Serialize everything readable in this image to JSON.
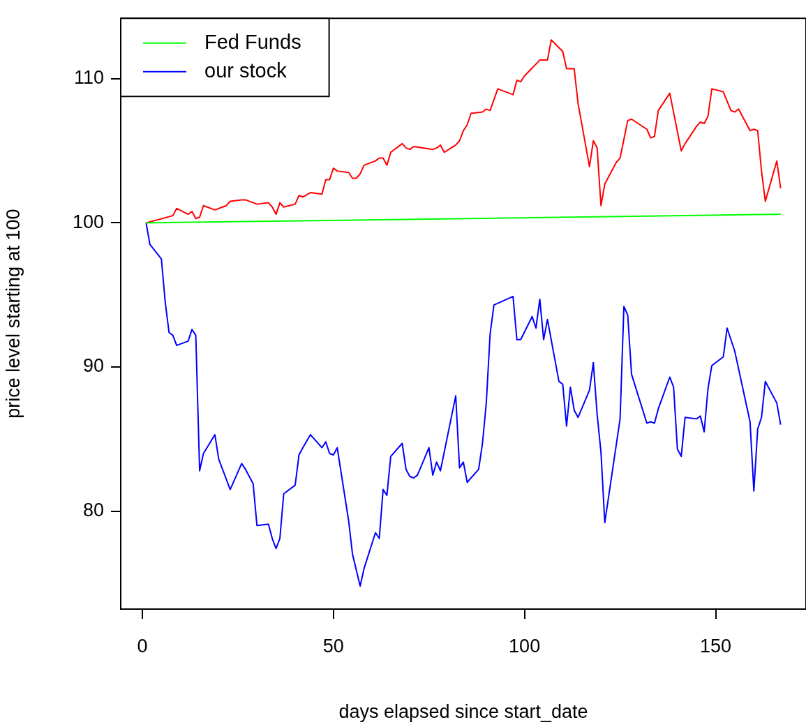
{
  "chart_data": {
    "type": "line",
    "xlabel": "days elapsed since start_date",
    "ylabel": "price level starting at 100",
    "xlim": [
      -5.64,
      173.64
    ],
    "ylim": [
      73.2,
      114.2
    ],
    "xticks": [
      0,
      50,
      100,
      150
    ],
    "yticks": [
      80,
      90,
      100,
      110
    ],
    "legend": "top left",
    "marker": "none",
    "line_style": "solid",
    "series": [
      {
        "name": "Fed Funds",
        "color": "#00ff00",
        "x": [
          1,
          167
        ],
        "values": [
          100,
          100.6
        ]
      },
      {
        "color": "#ff0000",
        "x": [
          1,
          8,
          9,
          12,
          13,
          14,
          15,
          16,
          19,
          21,
          22,
          23,
          26,
          27,
          30,
          33,
          34,
          35,
          36,
          37,
          40,
          41,
          42,
          44,
          47,
          48,
          49,
          50,
          51,
          54,
          55,
          56,
          57,
          58,
          61,
          62,
          63,
          64,
          65,
          68,
          69,
          70,
          71,
          76,
          77,
          78,
          79,
          82,
          83,
          84,
          85,
          86,
          89,
          90,
          91,
          93,
          97,
          98,
          99,
          100,
          104,
          105,
          106,
          107,
          110,
          111,
          112,
          113,
          114,
          117,
          118,
          119,
          120,
          121,
          124,
          125,
          127,
          128,
          132,
          133,
          134,
          135,
          138,
          141,
          142,
          145,
          146,
          147,
          148,
          149,
          152,
          154,
          155,
          156,
          159,
          160,
          161,
          162,
          163,
          166,
          167
        ],
        "values": [
          100,
          100.5,
          101,
          100.6,
          100.8,
          100.3,
          100.4,
          101.2,
          100.9,
          101.1,
          101.2,
          101.5,
          101.6,
          101.6,
          101.3,
          101.4,
          101.1,
          100.6,
          101.4,
          101.1,
          101.3,
          101.9,
          101.8,
          102.1,
          102,
          103,
          103,
          103.8,
          103.6,
          103.5,
          103.1,
          103.1,
          103.4,
          104,
          104.3,
          104.5,
          104.5,
          104,
          104.9,
          105.5,
          105.2,
          105.1,
          105.3,
          105.1,
          105.2,
          105.4,
          104.9,
          105.4,
          105.7,
          106.4,
          106.8,
          107.6,
          107.7,
          107.9,
          107.8,
          109.3,
          108.9,
          109.9,
          109.8,
          110.2,
          111.3,
          111.3,
          111.3,
          112.7,
          111.9,
          110.7,
          110.7,
          110.7,
          108.3,
          103.9,
          105.7,
          105.2,
          101.2,
          102.7,
          104.2,
          104.5,
          107.1,
          107.2,
          106.5,
          105.9,
          106,
          107.8,
          109,
          105,
          105.5,
          106.7,
          107,
          106.9,
          107.4,
          109.3,
          109.1,
          107.8,
          107.7,
          107.9,
          106.4,
          106.5,
          106.4,
          103.6,
          101.5,
          104.3,
          102.4
        ]
      },
      {
        "name": "our stock",
        "color": "#0000ff",
        "x": [
          1,
          2,
          5,
          6,
          7,
          8,
          9,
          12,
          13,
          14,
          15,
          16,
          19,
          20,
          21,
          23,
          26,
          27,
          29,
          30,
          33,
          34,
          35,
          36,
          37,
          40,
          41,
          42,
          44,
          47,
          48,
          49,
          50,
          51,
          54,
          55,
          56,
          57,
          58,
          61,
          62,
          63,
          64,
          65,
          68,
          69,
          70,
          71,
          72,
          75,
          76,
          77,
          78,
          82,
          83,
          84,
          85,
          88,
          89,
          90,
          91,
          92,
          97,
          98,
          99,
          102,
          103,
          104,
          105,
          106,
          109,
          110,
          111,
          112,
          113,
          114,
          117,
          118,
          119,
          120,
          121,
          125,
          126,
          127,
          128,
          132,
          133,
          134,
          135,
          138,
          139,
          140,
          141,
          142,
          145,
          146,
          147,
          148,
          149,
          152,
          153,
          154,
          155,
          159,
          160,
          161,
          162,
          163,
          166,
          167
        ],
        "values": [
          100,
          98.5,
          97.5,
          94.5,
          92.4,
          92.2,
          91.5,
          91.8,
          92.6,
          92.2,
          82.8,
          84,
          85.3,
          83.6,
          82.9,
          81.5,
          83.3,
          82.9,
          81.9,
          79,
          79.1,
          78.1,
          77.4,
          78.1,
          81.2,
          81.8,
          83.9,
          84.4,
          85.3,
          84.4,
          84.8,
          84,
          83.9,
          84.4,
          79.3,
          77,
          75.9,
          74.8,
          76,
          78.5,
          78.1,
          81.5,
          81.1,
          83.8,
          84.7,
          82.9,
          82.4,
          82.3,
          82.5,
          84.4,
          82.5,
          83.4,
          82.8,
          88,
          83,
          83.4,
          82,
          82.9,
          84.7,
          87.5,
          92.3,
          94.3,
          94.9,
          91.9,
          91.9,
          93.5,
          92.7,
          94.7,
          91.9,
          93.3,
          89,
          88.8,
          85.9,
          88.6,
          87,
          86.5,
          88.4,
          90.3,
          86.7,
          84.1,
          79.2,
          86.4,
          94.2,
          93.6,
          89.5,
          86.1,
          86.2,
          86.1,
          87.1,
          89.3,
          88.6,
          84.3,
          83.8,
          86.5,
          86.4,
          86.6,
          85.5,
          88.5,
          90.1,
          90.7,
          92.7,
          91.9,
          91.1,
          86.2,
          81.4,
          85.7,
          86.5,
          89,
          87.5,
          86
        ]
      }
    ]
  }
}
